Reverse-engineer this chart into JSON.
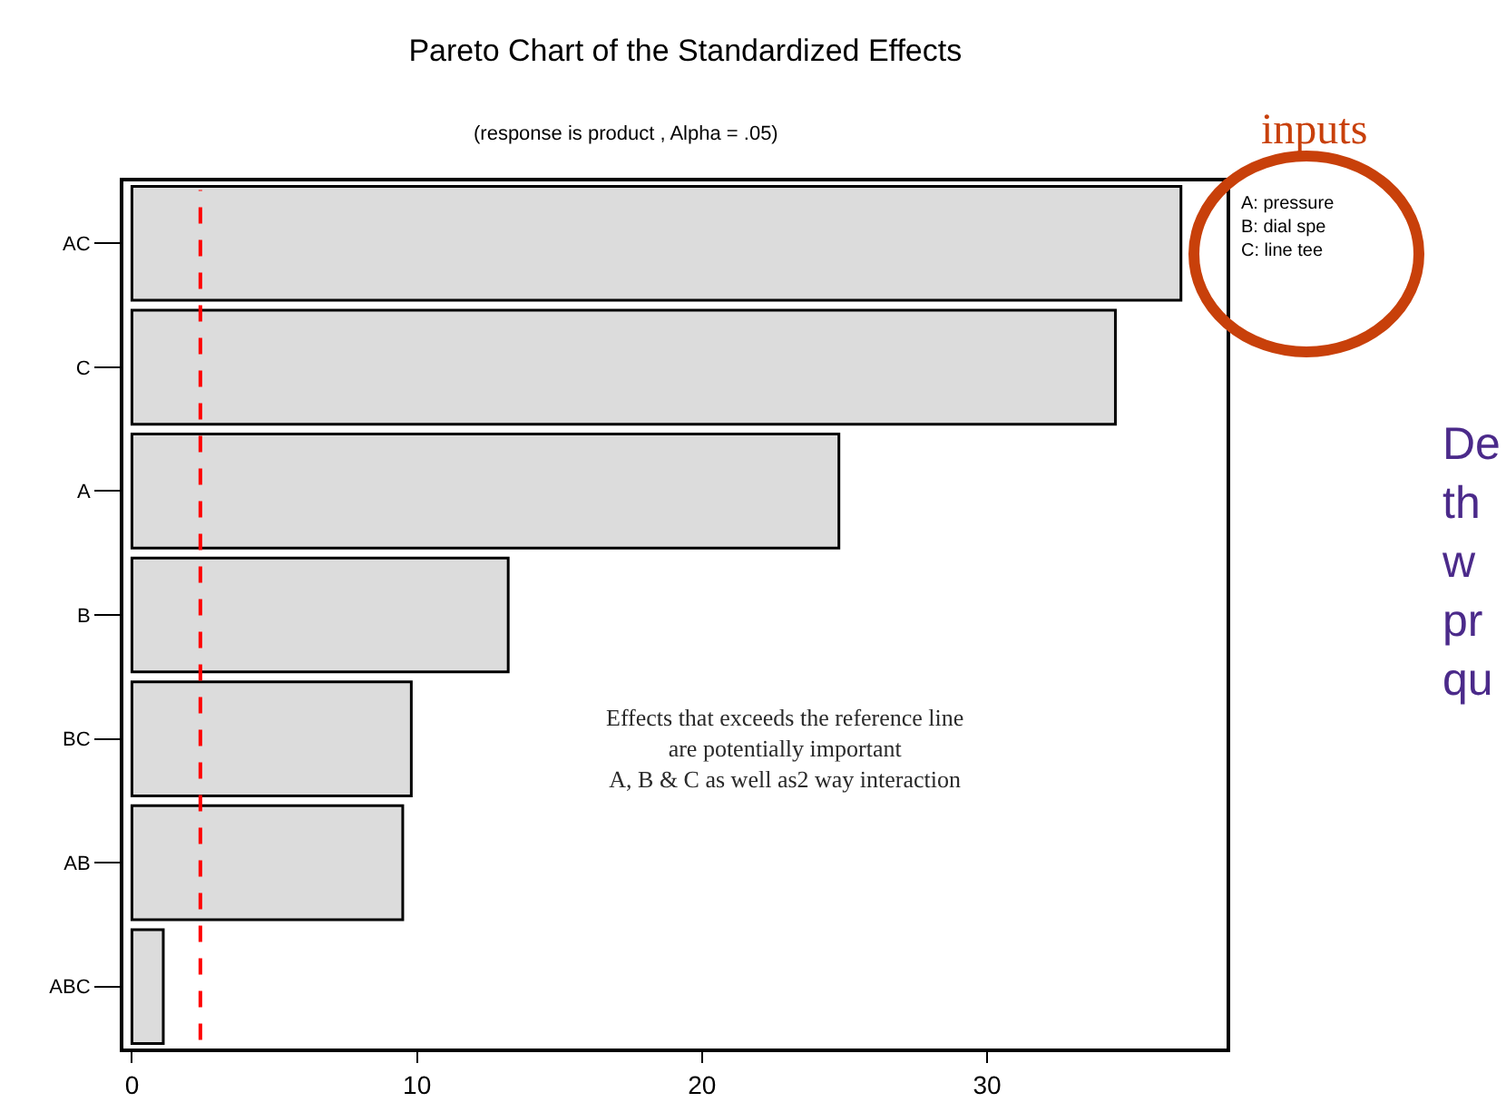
{
  "chart_data": {
    "type": "bar",
    "orientation": "horizontal",
    "title": "Pareto Chart of the Standardized Effects",
    "subtitle": "(response is product , Alpha = .05)",
    "categories": [
      "AC",
      "C",
      "A",
      "B",
      "BC",
      "AB",
      "ABC"
    ],
    "values": [
      36.8,
      34.5,
      24.8,
      13.2,
      9.8,
      9.5,
      1.1
    ],
    "color": "#dcdcdc",
    "xlim": [
      -0.3,
      38.4
    ],
    "xticks": [
      0,
      10,
      20,
      30
    ],
    "grid": false,
    "ref_lines": [
      {
        "axis": "x",
        "value": 2.4,
        "color": "#ff0000",
        "line_style": "dashed"
      }
    ],
    "annotations": [
      "inputs",
      "A: pressure\nB: dial spe\nC: line tee",
      "Effects that exceeds the reference line\nare potentially important\nA, B & C as well as2 way interaction",
      "De\nth\nw\npr\nqu"
    ]
  }
}
